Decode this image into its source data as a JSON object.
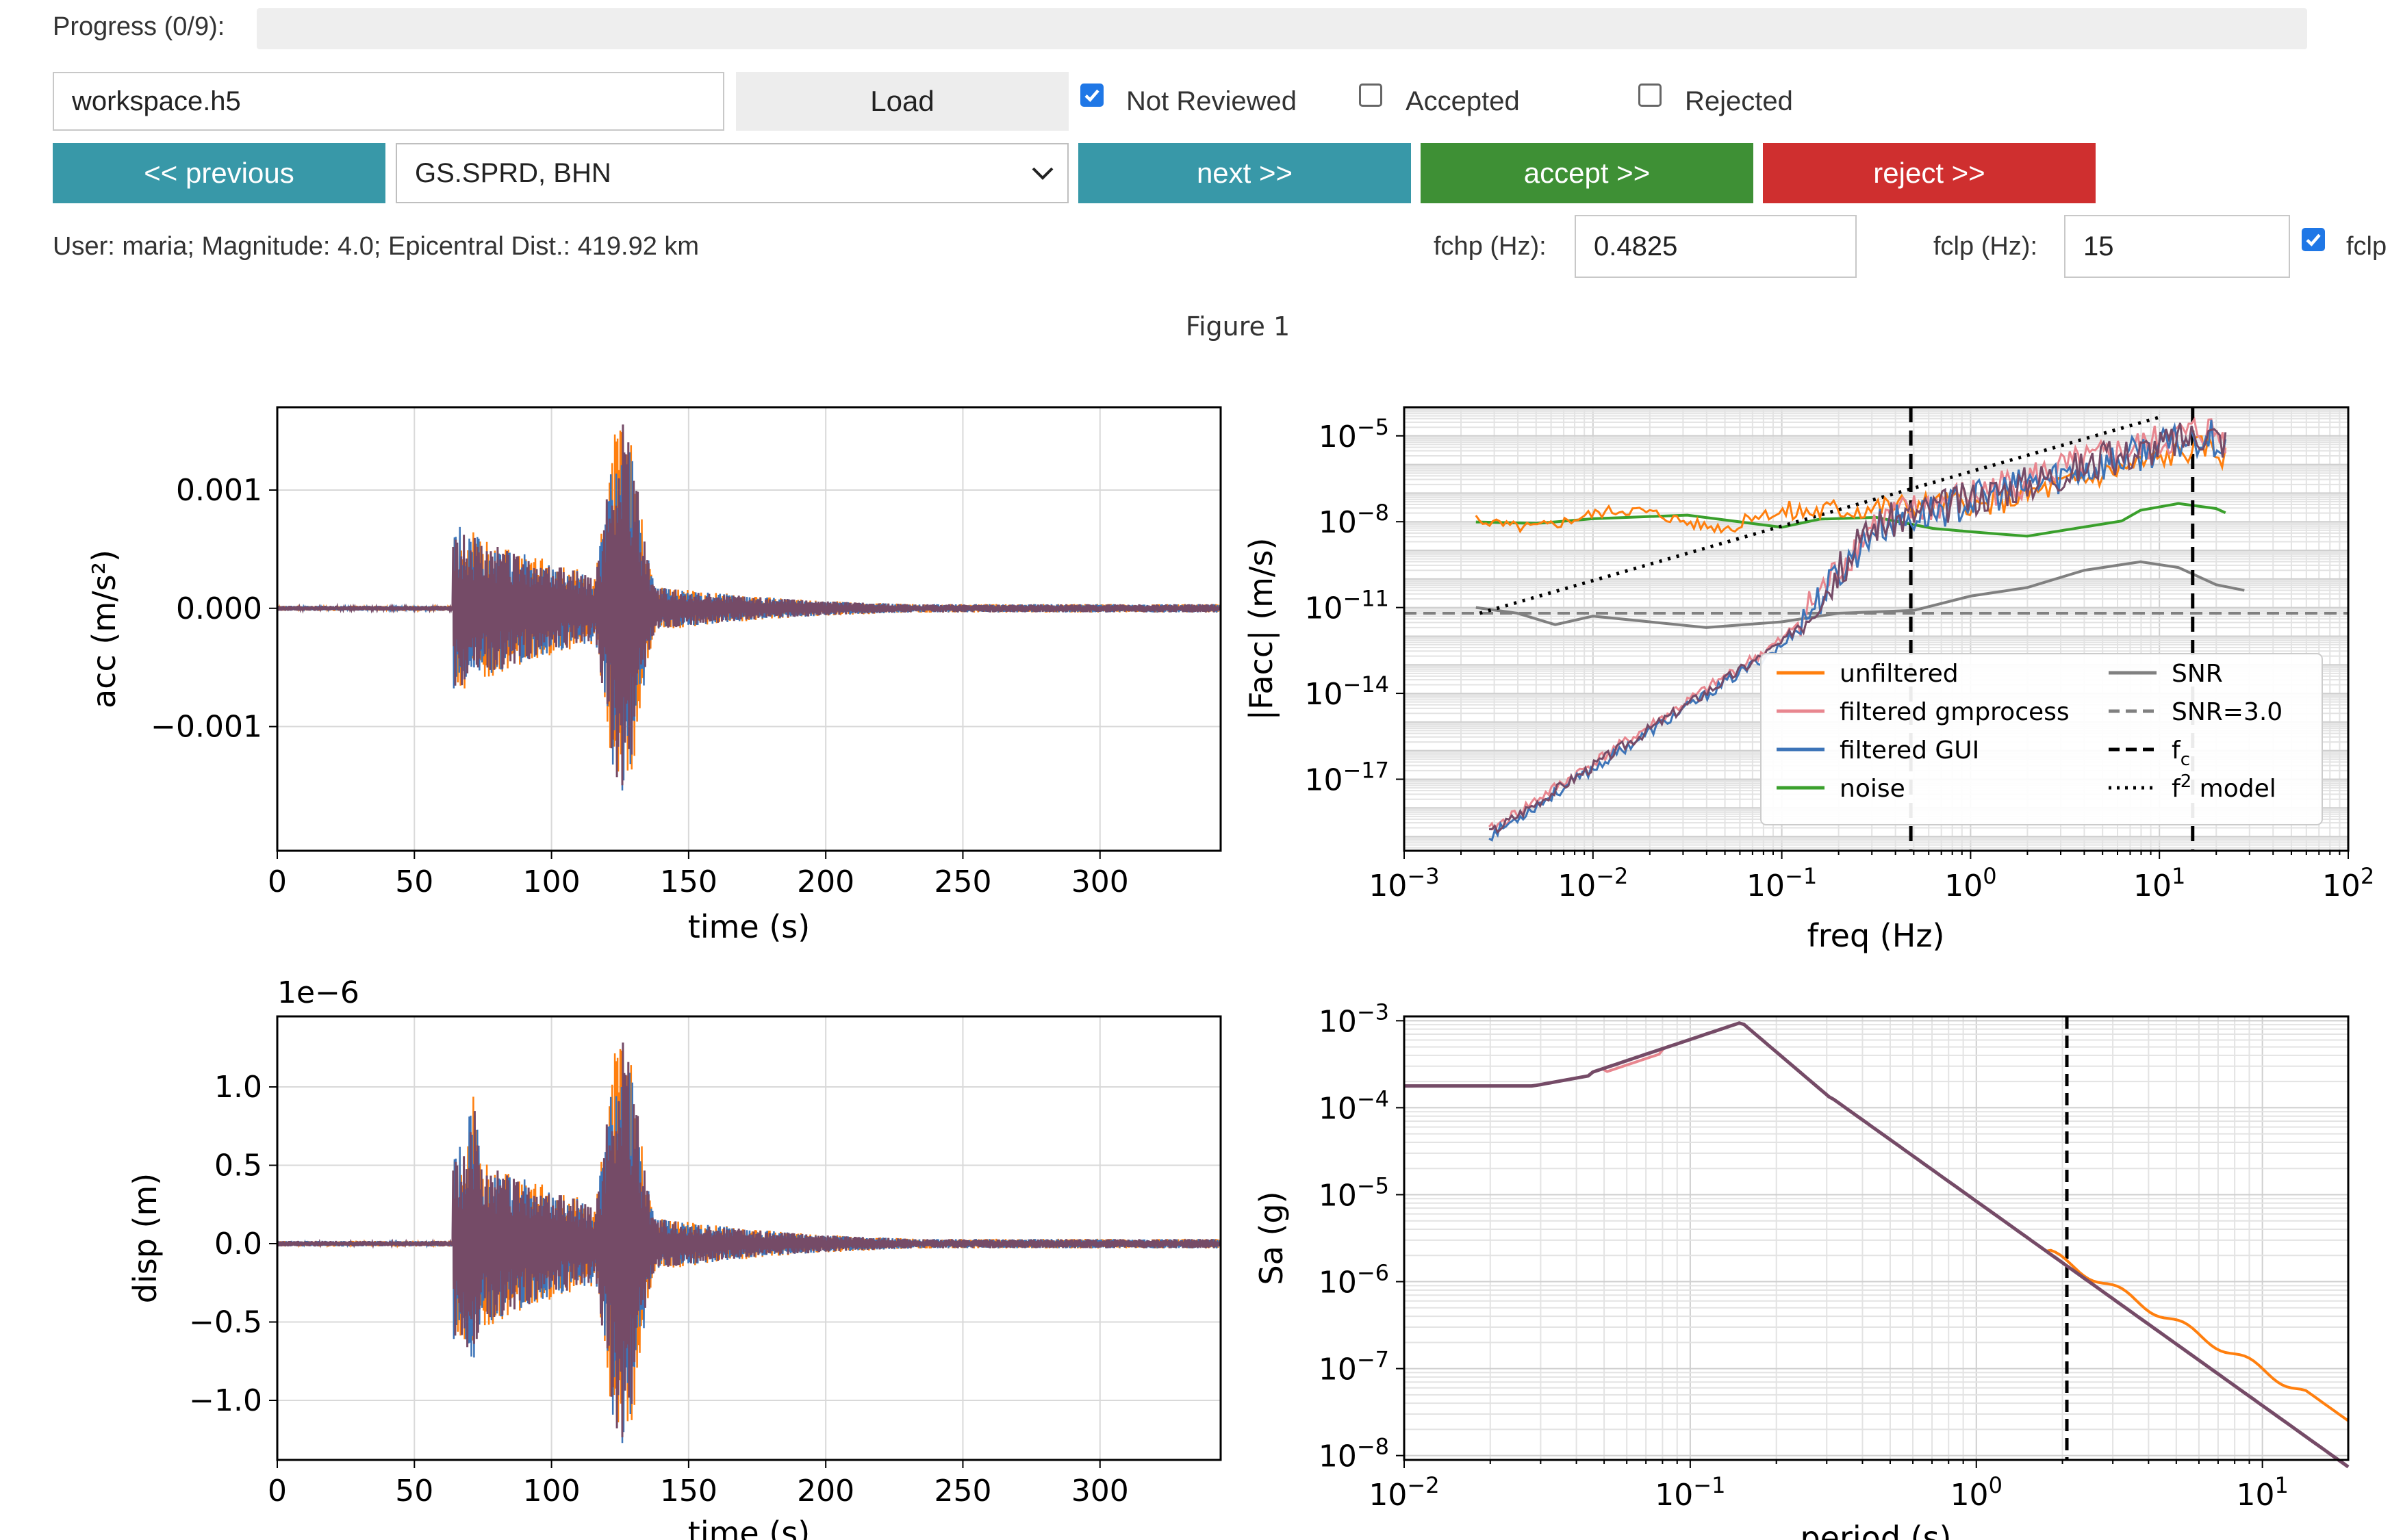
{
  "progress": {
    "label": "Progress (0/9):",
    "done": 0,
    "total": 9
  },
  "file_input": {
    "value": "workspace.h5"
  },
  "load_button": {
    "label": "Load"
  },
  "filters": {
    "not_reviewed": {
      "label": "Not Reviewed",
      "checked": true
    },
    "accepted": {
      "label": "Accepted",
      "checked": false
    },
    "rejected": {
      "label": "Rejected",
      "checked": false
    }
  },
  "nav": {
    "previous_label": "<< previous",
    "station_selected": "GS.SPRD, BHN",
    "next_label": "next >>",
    "accept_label": "accept >>",
    "reject_label": "reject >>"
  },
  "info": {
    "text": "User: maria; Magnitude: 4.0; Epicentral Dist.: 419.92 km",
    "fchp_label": "fchp (Hz):",
    "fchp_value": "0.4825",
    "fclp_label": "fclp (Hz):",
    "fclp_value": "15",
    "fclp_checkbox_label": "fclp",
    "fclp_checked": true
  },
  "figure": {
    "title": "Figure 1",
    "acc": {
      "xlabel": "time (s)",
      "ylabel": "acc (m/s²)",
      "xticks": [
        "0",
        "50",
        "100",
        "150",
        "200",
        "250",
        "300"
      ],
      "yticks": [
        "0.001",
        "0.000",
        "−0.001"
      ]
    },
    "disp": {
      "xlabel": "time (s)",
      "ylabel": "disp (m)",
      "offset": "1e−6",
      "xticks": [
        "0",
        "50",
        "100",
        "150",
        "200",
        "250",
        "300"
      ],
      "yticks": [
        "1.0",
        "0.5",
        "0.0",
        "−0.5",
        "−1.0"
      ]
    },
    "fas": {
      "xlabel": "freq (Hz)",
      "ylabel": "|Facc| (m/s)",
      "xticks": [
        "−3",
        "−2",
        "−1",
        "0",
        "1",
        "2"
      ],
      "yticks": [
        "−5",
        "−8",
        "−11",
        "−14",
        "−17"
      ],
      "legend": [
        {
          "label": "unfiltered",
          "color": "#ff7f0e",
          "style": "solid"
        },
        {
          "label": "filtered gmprocess",
          "color": "#e8868f",
          "style": "solid"
        },
        {
          "label": "filtered GUI",
          "color": "#3d74b8",
          "style": "solid"
        },
        {
          "label": "noise",
          "color": "#3aa02c",
          "style": "solid"
        },
        {
          "label": "SNR",
          "color": "#808080",
          "style": "solid"
        },
        {
          "label": "SNR=3.0",
          "color": "#808080",
          "style": "dashed"
        },
        {
          "label": "f",
          "sub": "c",
          "color": "#000000",
          "style": "dashed"
        },
        {
          "label": "f",
          "sup": "2",
          "suffix": " model",
          "color": "#000000",
          "style": "dotted"
        }
      ]
    },
    "sa": {
      "xlabel": "period (s)",
      "ylabel": "Sa (g)",
      "xticks": [
        "−2",
        "−1",
        "0",
        "1"
      ],
      "yticks": [
        "−3",
        "−4",
        "−5",
        "−6",
        "−7",
        "−8"
      ]
    }
  },
  "colors": {
    "trace": "#754b67",
    "unfiltered": "#ff7f0e",
    "gui": "#3d74b8",
    "noise": "#3aa02c",
    "snr": "#808080",
    "gmprocess": "#e8868f",
    "teal": "#3898a8",
    "green": "#3e9035",
    "red": "#cf2f2f"
  }
}
